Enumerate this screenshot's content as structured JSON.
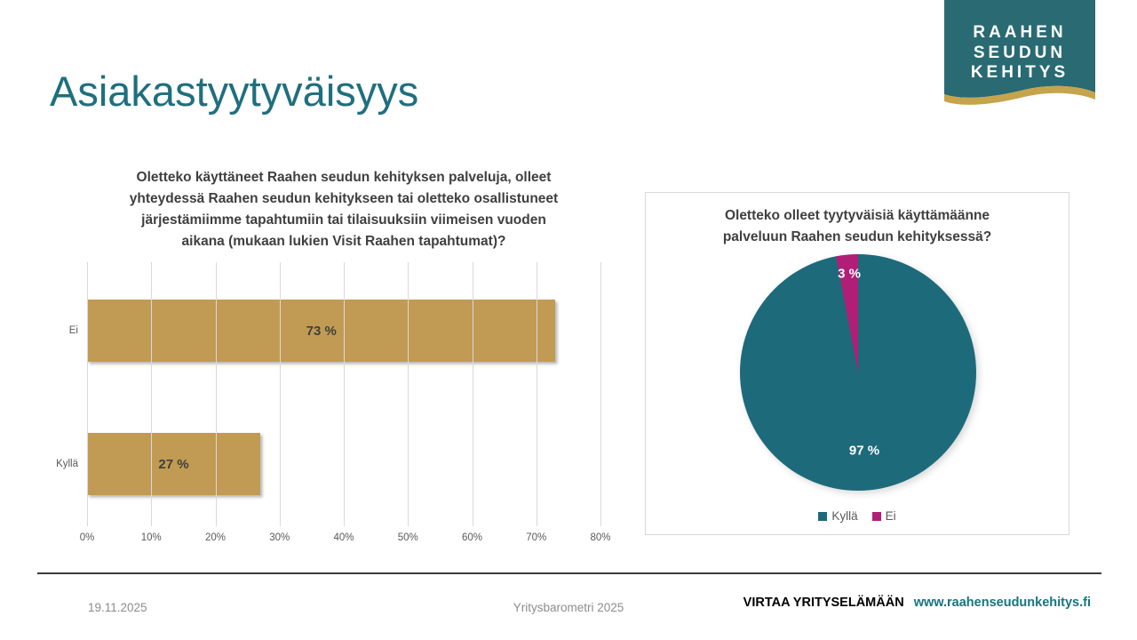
{
  "slide": {
    "title": "Asiakastyytyväisyys",
    "logo": {
      "lines": [
        "RAAHEN",
        "SEUDUN",
        "KEHITYS"
      ]
    },
    "footer": {
      "date": "19.11.2025",
      "center": "Yritysbarometri 2025",
      "tagline": "VIRTAA YRITYSELÄMÄÄN",
      "url": "www.raahenseudunkehitys.fi"
    }
  },
  "colors": {
    "brand_teal": "#1F6F7E",
    "logo_teal": "#296A73",
    "logo_gold": "#C6A44C",
    "bar_gold": "#C19B53",
    "pie_yes": "#1D6A7B",
    "pie_no": "#B01E77",
    "grid": "#D9D9D9",
    "card_border": "#D9D9D9",
    "text_dark": "#3F3F3F",
    "text_gray": "#595959",
    "footer_gray": "#8C8C8C",
    "link_teal": "#177480",
    "rule_dark": "#3B3B3B"
  },
  "chart_data": [
    {
      "type": "bar",
      "orientation": "horizontal",
      "title": "Oletteko käyttäneet Raahen seudun kehityksen palveluja, olleet yhteydessä Raahen seudun kehitykseen tai oletteko osallistuneet järjestämiimme tapahtumiin tai tilaisuuksiin viimeisen vuoden aikana (mukaan lukien Visit Raahen tapahtumat)?",
      "title_lines": [
        "Oletteko käyttäneet Raahen seudun kehityksen palveluja, olleet",
        "yhteydessä Raahen seudun kehitykseen tai oletteko osallistuneet",
        "järjestämiimme tapahtumiin tai tilaisuuksiin viimeisen vuoden",
        "aikana (mukaan lukien Visit Raahen tapahtumat)?"
      ],
      "categories": [
        "Ei",
        "Kyllä"
      ],
      "values": [
        73,
        27
      ],
      "data_labels": [
        "73 %",
        "27 %"
      ],
      "xlim": [
        0,
        80
      ],
      "x_ticks": [
        "0%",
        "10%",
        "20%",
        "30%",
        "40%",
        "50%",
        "60%",
        "70%",
        "80%"
      ],
      "grid": true,
      "legend_position": "none"
    },
    {
      "type": "pie",
      "title": "Oletteko olleet tyytyväisiä käyttämäänne palveluun Raahen seudun kehityksessä?",
      "title_lines": [
        "Oletteko olleet tyytyväisiä käyttämäänne",
        "palveluun Raahen seudun kehityksessä?"
      ],
      "categories": [
        "Kyllä",
        "Ei"
      ],
      "values": [
        97,
        3
      ],
      "data_labels": [
        "97 %",
        "3 %"
      ],
      "legend": [
        "Kyllä",
        "Ei"
      ],
      "legend_position": "bottom"
    }
  ]
}
